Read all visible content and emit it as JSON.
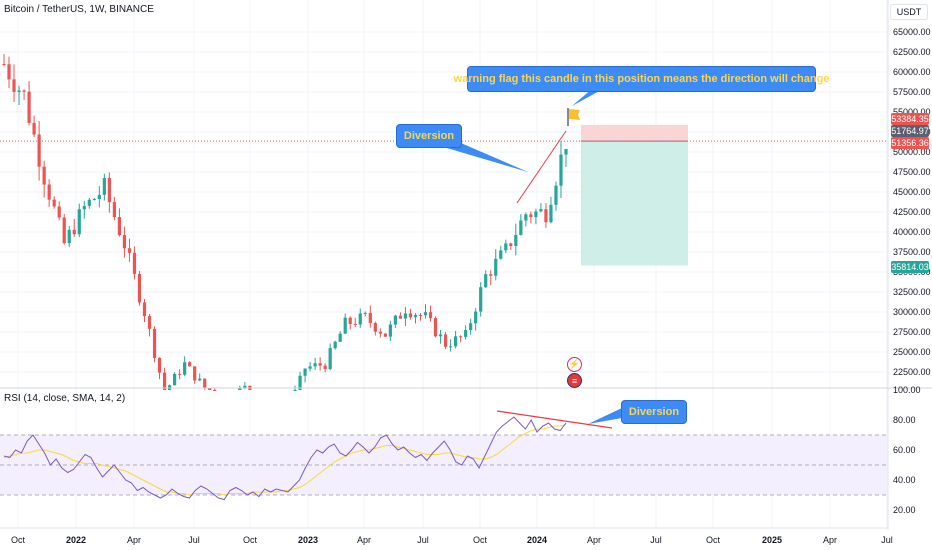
{
  "header": {
    "symbol": "Bitcoin / TetherUS, 1W, BINANCE",
    "currency": "USDT"
  },
  "rsi_header": "RSI (14, close, SMA, 14, 2)",
  "annotations": {
    "flag_note": "warning flag this candle in this position means the direction will change",
    "diversion_price": "Diversion",
    "diversion_rsi": "Diversion"
  },
  "price_tags": {
    "stop": "53384.35",
    "current_high": "51764.97",
    "current": "51356.36",
    "target": "35814.03"
  },
  "colors": {
    "up": "#26a69a",
    "down": "#ef5350",
    "flag": "#fbc02d",
    "callout": "#3d8cf5",
    "rsi_line": "#7e57c2",
    "rsi_ma": "#fdd835",
    "stop_zone": "#fbd4d6",
    "target_zone": "#cfeee8"
  },
  "chart_data": [
    {
      "type": "candlestick",
      "title": "Bitcoin / TetherUS, 1W, BINANCE",
      "ylabel": "USDT",
      "ylim": [
        20000,
        67500
      ],
      "x_ticks": [
        "Oct",
        "2022",
        "Apr",
        "Jul",
        "Oct",
        "2023",
        "Apr",
        "Jul",
        "Oct",
        "2024",
        "Apr",
        "Jul",
        "Oct",
        "2025",
        "Apr",
        "Jul"
      ],
      "y_ticks": [
        22500,
        25000,
        27500,
        30000,
        32500,
        35000,
        37500,
        40000,
        42500,
        45000,
        47500,
        50000,
        52500,
        55000,
        57500,
        60000,
        62500,
        65000
      ],
      "series_close_approx": [
        {
          "x": "2021-10",
          "y": 61000
        },
        {
          "x": "2021-11",
          "y": 57000
        },
        {
          "x": "2021-12",
          "y": 47000
        },
        {
          "x": "2022-01",
          "y": 38500
        },
        {
          "x": "2022-02",
          "y": 43000
        },
        {
          "x": "2022-03",
          "y": 45500
        },
        {
          "x": "2022-04",
          "y": 38500
        },
        {
          "x": "2022-05",
          "y": 30000
        },
        {
          "x": "2022-06",
          "y": 20000
        },
        {
          "x": "2022-07",
          "y": 23500
        },
        {
          "x": "2022-08",
          "y": 20500
        },
        {
          "x": "2022-09",
          "y": 19500
        },
        {
          "x": "2022-10",
          "y": 20500
        },
        {
          "x": "2022-11",
          "y": 17000
        },
        {
          "x": "2022-12",
          "y": 16600
        },
        {
          "x": "2023-01",
          "y": 23000
        },
        {
          "x": "2023-02",
          "y": 23500
        },
        {
          "x": "2023-03",
          "y": 28500
        },
        {
          "x": "2023-04",
          "y": 29300
        },
        {
          "x": "2023-05",
          "y": 27200
        },
        {
          "x": "2023-06",
          "y": 30500
        },
        {
          "x": "2023-07",
          "y": 29300
        },
        {
          "x": "2023-08",
          "y": 26000
        },
        {
          "x": "2023-09",
          "y": 27000
        },
        {
          "x": "2023-10",
          "y": 34500
        },
        {
          "x": "2023-11",
          "y": 37700
        },
        {
          "x": "2023-12",
          "y": 42300
        },
        {
          "x": "2024-01",
          "y": 42500
        },
        {
          "x": "2024-02",
          "y": 51400
        }
      ],
      "position": {
        "entry": 51356.36,
        "stop": 53384.35,
        "target": 35814.03
      }
    },
    {
      "type": "line",
      "title": "RSI (14, close, SMA, 14, 2)",
      "ylim": [
        10,
        100
      ],
      "y_ticks": [
        20,
        40,
        60,
        80,
        100
      ],
      "bands": [
        30,
        50,
        70
      ],
      "series": [
        {
          "values": [
            56,
            55,
            60,
            58,
            66,
            70,
            64,
            58,
            50,
            54,
            48,
            45,
            47,
            52,
            57,
            55,
            48,
            42,
            46,
            50,
            45,
            40,
            38,
            33,
            35,
            32,
            30,
            28,
            30,
            34,
            31,
            29,
            28,
            33,
            36,
            34,
            31,
            28,
            27,
            33,
            35,
            33,
            30,
            32,
            29,
            34,
            32,
            34,
            33,
            32,
            36,
            40,
            48,
            55,
            60,
            58,
            62,
            64,
            58,
            56,
            60,
            65,
            62,
            58,
            62,
            68,
            70,
            64,
            60,
            62,
            58,
            55,
            57,
            53,
            58,
            62,
            66,
            60,
            52,
            50,
            56,
            54,
            48,
            56,
            64,
            72,
            76,
            79,
            82,
            78,
            74,
            80,
            72,
            76,
            78,
            74,
            73,
            78
          ]
        },
        {
          "values": [
            55,
            56,
            57,
            58,
            58,
            59,
            60,
            60,
            59,
            58,
            57,
            55,
            53,
            52,
            51,
            51,
            51,
            50,
            49,
            48,
            47,
            46,
            44,
            42,
            40,
            38,
            36,
            34,
            32,
            32,
            31,
            31,
            30,
            31,
            31,
            31,
            31,
            31,
            30,
            31,
            31,
            31,
            31,
            32,
            32,
            32,
            32,
            32,
            33,
            33,
            34,
            35,
            37,
            40,
            43,
            46,
            49,
            52,
            54,
            56,
            58,
            59,
            60,
            60,
            61,
            62,
            63,
            63,
            62,
            61,
            60,
            59,
            58,
            57,
            57,
            57,
            58,
            58,
            57,
            56,
            55,
            55,
            54,
            54,
            55,
            57,
            60,
            63,
            66,
            69,
            71,
            73,
            74,
            74,
            75,
            76,
            76,
            77
          ]
        }
      ]
    }
  ]
}
